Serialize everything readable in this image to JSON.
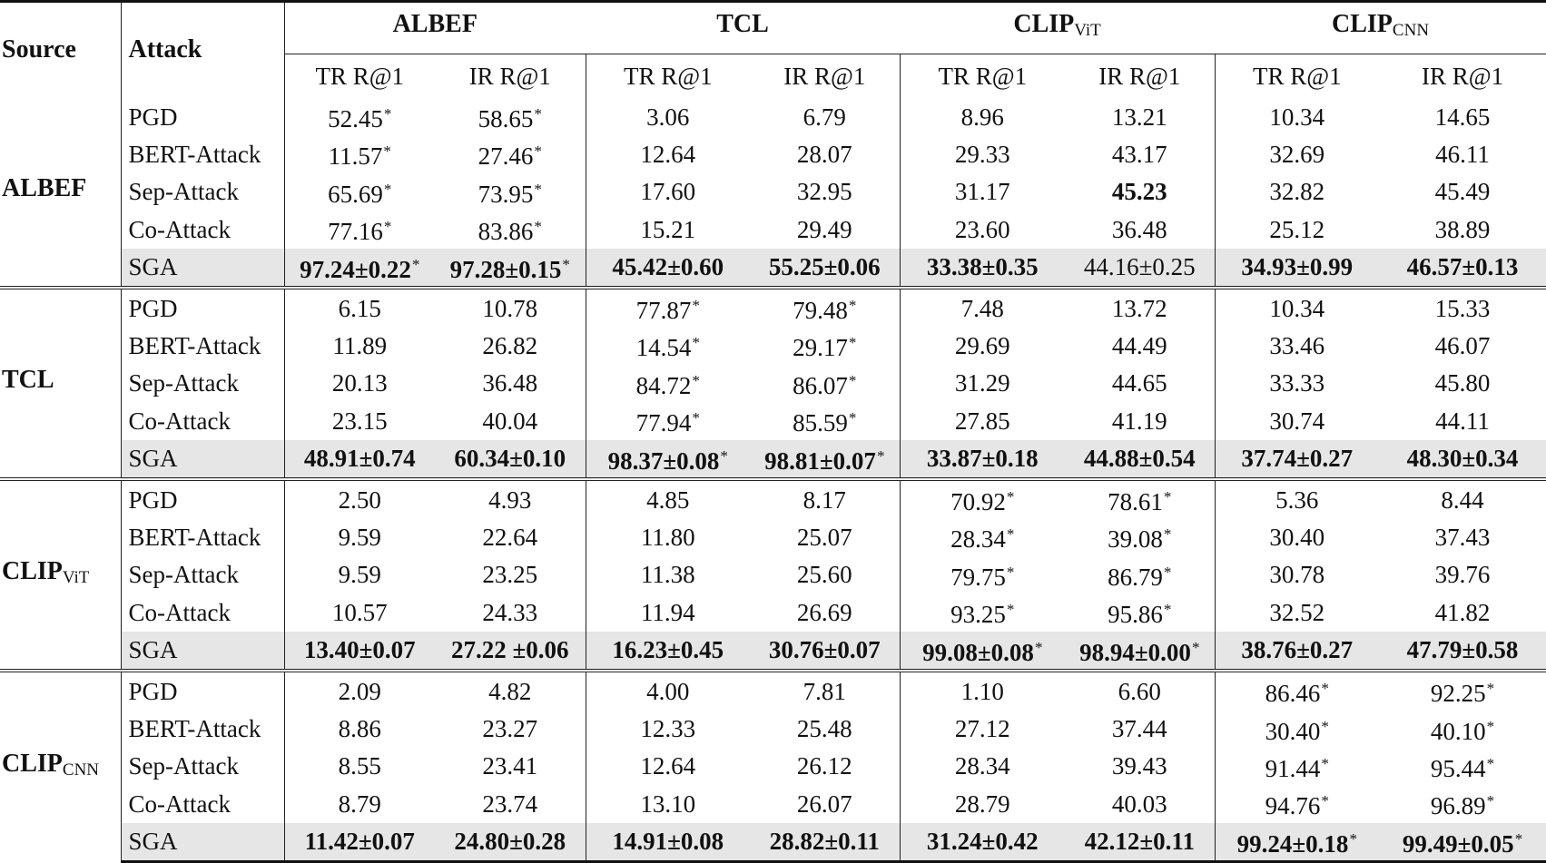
{
  "table": {
    "header": {
      "source_label": "Source",
      "attack_label": "Attack",
      "target_models": [
        {
          "name": "ALBEF",
          "sub": ""
        },
        {
          "name": "TCL",
          "sub": ""
        },
        {
          "name": "CLIP",
          "sub": "ViT"
        },
        {
          "name": "CLIP",
          "sub": "CNN"
        }
      ],
      "metrics": [
        "TR R@1",
        "IR R@1",
        "TR R@1",
        "IR R@1",
        "TR R@1",
        "IR R@1",
        "TR R@1",
        "IR R@1"
      ]
    },
    "groups": [
      {
        "source": {
          "name": "ALBEF",
          "sub": ""
        },
        "rows": [
          {
            "attack": "PGD",
            "cells": [
              {
                "v": "52.45",
                "star": true
              },
              {
                "v": "58.65",
                "star": true
              },
              {
                "v": "3.06"
              },
              {
                "v": "6.79"
              },
              {
                "v": "8.96"
              },
              {
                "v": "13.21"
              },
              {
                "v": "10.34"
              },
              {
                "v": "14.65"
              }
            ]
          },
          {
            "attack": "BERT-Attack",
            "cells": [
              {
                "v": "11.57",
                "star": true
              },
              {
                "v": "27.46",
                "star": true
              },
              {
                "v": "12.64"
              },
              {
                "v": "28.07"
              },
              {
                "v": "29.33"
              },
              {
                "v": "43.17"
              },
              {
                "v": "32.69"
              },
              {
                "v": "46.11"
              }
            ]
          },
          {
            "attack": "Sep-Attack",
            "cells": [
              {
                "v": "65.69",
                "star": true
              },
              {
                "v": "73.95",
                "star": true
              },
              {
                "v": "17.60"
              },
              {
                "v": "32.95"
              },
              {
                "v": "31.17"
              },
              {
                "v": "45.23",
                "bold": true
              },
              {
                "v": "32.82"
              },
              {
                "v": "45.49"
              }
            ]
          },
          {
            "attack": "Co-Attack",
            "cells": [
              {
                "v": "77.16",
                "star": true
              },
              {
                "v": "83.86",
                "star": true
              },
              {
                "v": "15.21"
              },
              {
                "v": "29.49"
              },
              {
                "v": "23.60"
              },
              {
                "v": "36.48"
              },
              {
                "v": "25.12"
              },
              {
                "v": "38.89"
              }
            ]
          },
          {
            "attack": "SGA",
            "sga": true,
            "cells": [
              {
                "v": "97.24±0.22",
                "star": true,
                "bold": true
              },
              {
                "v": "97.28±0.15",
                "star": true,
                "bold": true
              },
              {
                "v": "45.42±0.60",
                "bold": true
              },
              {
                "v": "55.25±0.06",
                "bold": true
              },
              {
                "v": "33.38±0.35",
                "bold": true
              },
              {
                "v": "44.16±0.25"
              },
              {
                "v": "34.93±0.99",
                "bold": true
              },
              {
                "v": "46.57±0.13",
                "bold": true
              }
            ]
          }
        ]
      },
      {
        "source": {
          "name": "TCL",
          "sub": ""
        },
        "rows": [
          {
            "attack": "PGD",
            "cells": [
              {
                "v": "6.15"
              },
              {
                "v": "10.78"
              },
              {
                "v": "77.87",
                "star": true
              },
              {
                "v": "79.48",
                "star": true
              },
              {
                "v": "7.48"
              },
              {
                "v": "13.72"
              },
              {
                "v": "10.34"
              },
              {
                "v": "15.33"
              }
            ]
          },
          {
            "attack": "BERT-Attack",
            "cells": [
              {
                "v": "11.89"
              },
              {
                "v": "26.82"
              },
              {
                "v": "14.54",
                "star": true
              },
              {
                "v": "29.17",
                "star": true
              },
              {
                "v": "29.69"
              },
              {
                "v": "44.49"
              },
              {
                "v": "33.46"
              },
              {
                "v": "46.07"
              }
            ]
          },
          {
            "attack": "Sep-Attack",
            "cells": [
              {
                "v": "20.13"
              },
              {
                "v": "36.48"
              },
              {
                "v": "84.72",
                "star": true
              },
              {
                "v": "86.07",
                "star": true
              },
              {
                "v": "31.29"
              },
              {
                "v": "44.65"
              },
              {
                "v": "33.33"
              },
              {
                "v": "45.80"
              }
            ]
          },
          {
            "attack": "Co-Attack",
            "cells": [
              {
                "v": "23.15"
              },
              {
                "v": "40.04"
              },
              {
                "v": "77.94",
                "star": true
              },
              {
                "v": "85.59",
                "star": true
              },
              {
                "v": "27.85"
              },
              {
                "v": "41.19"
              },
              {
                "v": "30.74"
              },
              {
                "v": "44.11"
              }
            ]
          },
          {
            "attack": "SGA",
            "sga": true,
            "cells": [
              {
                "v": "48.91±0.74",
                "bold": true
              },
              {
                "v": "60.34±0.10",
                "bold": true
              },
              {
                "v": "98.37±0.08",
                "star": true,
                "bold": true
              },
              {
                "v": "98.81±0.07",
                "star": true,
                "bold": true
              },
              {
                "v": "33.87±0.18",
                "bold": true
              },
              {
                "v": "44.88±0.54",
                "bold": true
              },
              {
                "v": "37.74±0.27",
                "bold": true
              },
              {
                "v": "48.30±0.34",
                "bold": true
              }
            ]
          }
        ]
      },
      {
        "source": {
          "name": "CLIP",
          "sub": "ViT"
        },
        "rows": [
          {
            "attack": "PGD",
            "cells": [
              {
                "v": "2.50"
              },
              {
                "v": "4.93"
              },
              {
                "v": "4.85"
              },
              {
                "v": "8.17"
              },
              {
                "v": "70.92",
                "star": true
              },
              {
                "v": "78.61",
                "star": true
              },
              {
                "v": "5.36"
              },
              {
                "v": "8.44"
              }
            ]
          },
          {
            "attack": "BERT-Attack",
            "cells": [
              {
                "v": "9.59"
              },
              {
                "v": "22.64"
              },
              {
                "v": "11.80"
              },
              {
                "v": "25.07"
              },
              {
                "v": "28.34",
                "star": true
              },
              {
                "v": "39.08",
                "star": true
              },
              {
                "v": "30.40"
              },
              {
                "v": "37.43"
              }
            ]
          },
          {
            "attack": "Sep-Attack",
            "cells": [
              {
                "v": "9.59"
              },
              {
                "v": "23.25"
              },
              {
                "v": "11.38"
              },
              {
                "v": "25.60"
              },
              {
                "v": "79.75",
                "star": true
              },
              {
                "v": "86.79",
                "star": true
              },
              {
                "v": "30.78"
              },
              {
                "v": "39.76"
              }
            ]
          },
          {
            "attack": "Co-Attack",
            "cells": [
              {
                "v": "10.57"
              },
              {
                "v": "24.33"
              },
              {
                "v": "11.94"
              },
              {
                "v": "26.69"
              },
              {
                "v": "93.25",
                "star": true
              },
              {
                "v": "95.86",
                "star": true
              },
              {
                "v": "32.52"
              },
              {
                "v": "41.82"
              }
            ]
          },
          {
            "attack": "SGA",
            "sga": true,
            "cells": [
              {
                "v": "13.40±0.07",
                "bold": true
              },
              {
                "v": "27.22 ±0.06",
                "bold": true
              },
              {
                "v": "16.23±0.45",
                "bold": true
              },
              {
                "v": "30.76±0.07",
                "bold": true
              },
              {
                "v": "99.08±0.08",
                "star": true,
                "bold": true
              },
              {
                "v": "98.94±0.00",
                "star": true,
                "bold": true
              },
              {
                "v": "38.76±0.27",
                "bold": true
              },
              {
                "v": "47.79±0.58",
                "bold": true
              }
            ]
          }
        ]
      },
      {
        "source": {
          "name": "CLIP",
          "sub": "CNN"
        },
        "rows": [
          {
            "attack": "PGD",
            "cells": [
              {
                "v": "2.09"
              },
              {
                "v": "4.82"
              },
              {
                "v": "4.00"
              },
              {
                "v": "7.81"
              },
              {
                "v": "1.10"
              },
              {
                "v": "6.60"
              },
              {
                "v": "86.46",
                "star": true
              },
              {
                "v": "92.25",
                "star": true
              }
            ]
          },
          {
            "attack": "BERT-Attack",
            "cells": [
              {
                "v": "8.86"
              },
              {
                "v": "23.27"
              },
              {
                "v": "12.33"
              },
              {
                "v": "25.48"
              },
              {
                "v": "27.12"
              },
              {
                "v": "37.44"
              },
              {
                "v": "30.40",
                "star": true
              },
              {
                "v": "40.10",
                "star": true
              }
            ]
          },
          {
            "attack": "Sep-Attack",
            "cells": [
              {
                "v": "8.55"
              },
              {
                "v": "23.41"
              },
              {
                "v": "12.64"
              },
              {
                "v": "26.12"
              },
              {
                "v": "28.34"
              },
              {
                "v": "39.43"
              },
              {
                "v": "91.44",
                "star": true
              },
              {
                "v": "95.44",
                "star": true
              }
            ]
          },
          {
            "attack": "Co-Attack",
            "cells": [
              {
                "v": "8.79"
              },
              {
                "v": "23.74"
              },
              {
                "v": "13.10"
              },
              {
                "v": "26.07"
              },
              {
                "v": "28.79"
              },
              {
                "v": "40.03"
              },
              {
                "v": "94.76",
                "star": true
              },
              {
                "v": "96.89",
                "star": true
              }
            ]
          },
          {
            "attack": "SGA",
            "sga": true,
            "cells": [
              {
                "v": "11.42±0.07",
                "bold": true
              },
              {
                "v": "24.80±0.28",
                "bold": true
              },
              {
                "v": "14.91±0.08",
                "bold": true
              },
              {
                "v": "28.82±0.11",
                "bold": true
              },
              {
                "v": "31.24±0.42",
                "bold": true
              },
              {
                "v": "42.12±0.11",
                "bold": true
              },
              {
                "v": "99.24±0.18",
                "star": true,
                "bold": true
              },
              {
                "v": "99.49±0.05",
                "star": true,
                "bold": true
              }
            ]
          }
        ]
      }
    ],
    "star_symbol": "*",
    "colors": {
      "sga_row_bg": "#e6e6e6",
      "rule": "#111111"
    }
  }
}
